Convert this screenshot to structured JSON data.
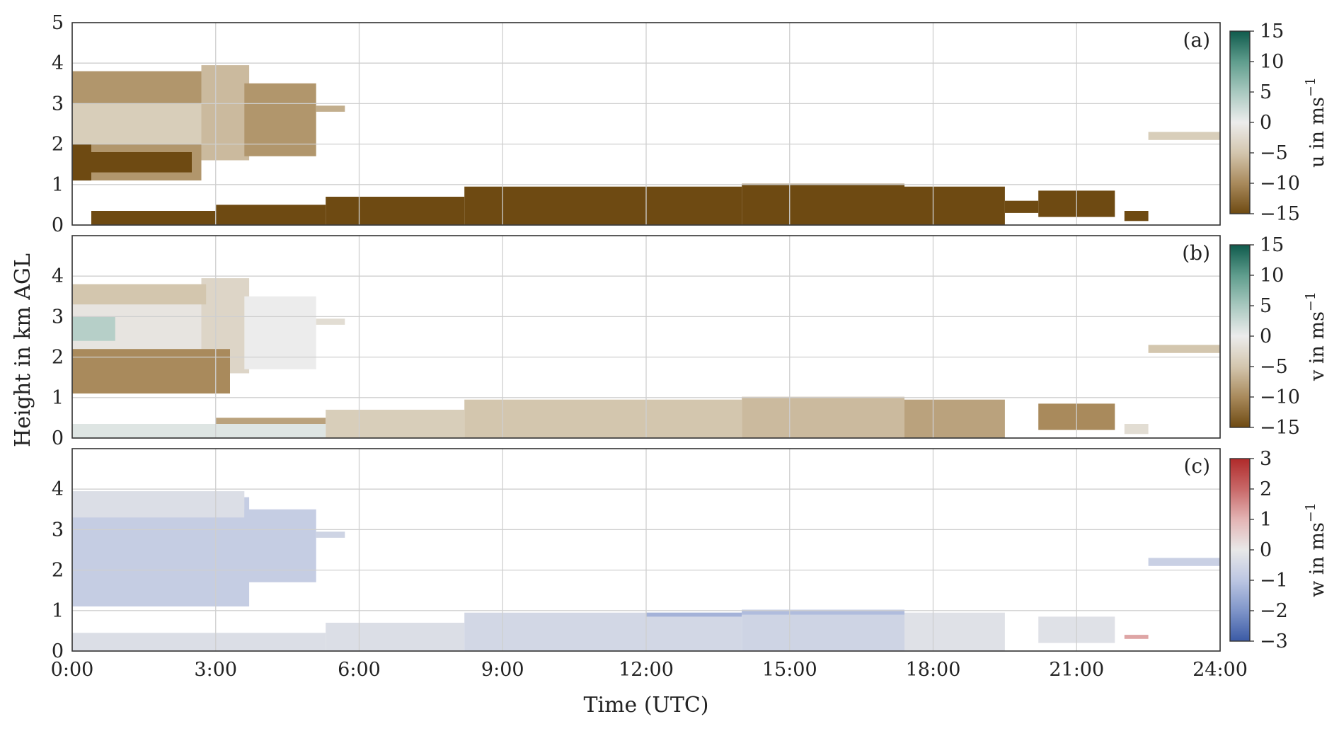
{
  "chart_data": {
    "type": "heatmap",
    "xlabel": "Time (UTC)",
    "ylabel": "Height in km AGL",
    "xlim": [
      0,
      24
    ],
    "x_ticks": [
      "0:00",
      "3:00",
      "6:00",
      "9:00",
      "12:00",
      "15:00",
      "18:00",
      "21:00",
      "24:00"
    ],
    "grid": true,
    "panels": [
      {
        "tag": "(a)",
        "variable": "u",
        "colorbar_label": "u in ms",
        "unit_superscript": "−1",
        "clim": [
          -15,
          15
        ],
        "colorbar_ticks": [
          "15",
          "10",
          "5",
          "0",
          "−5",
          "−10",
          "−15"
        ],
        "colormap": [
          "#6e4a12",
          "#a98a5c",
          "#d3c6ae",
          "#ececec",
          "#a8c8bf",
          "#5f9d8d",
          "#0f5a4c"
        ],
        "ylim": [
          0,
          5
        ],
        "y_ticks": [
          "0",
          "1",
          "2",
          "3",
          "4",
          "5"
        ],
        "regions": [
          {
            "t0": 0.0,
            "t1": 2.7,
            "h0": 1.1,
            "h1": 3.8,
            "value": -9
          },
          {
            "t0": 0.0,
            "t1": 3.6,
            "h0": 2.0,
            "h1": 3.0,
            "value": -4
          },
          {
            "t0": 2.7,
            "t1": 3.7,
            "h0": 1.6,
            "h1": 3.95,
            "value": -6
          },
          {
            "t0": 3.6,
            "t1": 5.1,
            "h0": 1.7,
            "h1": 3.5,
            "value": -9
          },
          {
            "t0": 5.1,
            "t1": 5.7,
            "h0": 2.8,
            "h1": 2.95,
            "value": -7
          },
          {
            "t0": 0.0,
            "t1": 0.4,
            "h0": 1.1,
            "h1": 2.0,
            "value": -15
          },
          {
            "t0": 0.3,
            "t1": 2.5,
            "h0": 1.3,
            "h1": 1.8,
            "value": -15
          },
          {
            "t0": 0.4,
            "t1": 3.5,
            "h0": 0.0,
            "h1": 0.35,
            "value": -15
          },
          {
            "t0": 3.0,
            "t1": 5.3,
            "h0": 0.0,
            "h1": 0.5,
            "value": -15
          },
          {
            "t0": 5.3,
            "t1": 8.2,
            "h0": 0.0,
            "h1": 0.7,
            "value": -15
          },
          {
            "t0": 8.2,
            "t1": 14.0,
            "h0": 0.0,
            "h1": 0.95,
            "value": -15
          },
          {
            "t0": 14.0,
            "t1": 17.4,
            "h0": 0.0,
            "h1": 1.02,
            "value": -15
          },
          {
            "t0": 17.4,
            "t1": 19.5,
            "h0": 0.0,
            "h1": 0.95,
            "value": -15
          },
          {
            "t0": 19.5,
            "t1": 20.2,
            "h0": 0.3,
            "h1": 0.6,
            "value": -15
          },
          {
            "t0": 20.2,
            "t1": 21.8,
            "h0": 0.2,
            "h1": 0.85,
            "value": -15
          },
          {
            "t0": 22.0,
            "t1": 22.5,
            "h0": 0.1,
            "h1": 0.35,
            "value": -15
          },
          {
            "t0": 22.5,
            "t1": 24.0,
            "h0": 2.1,
            "h1": 2.3,
            "value": -4
          }
        ]
      },
      {
        "tag": "(b)",
        "variable": "v",
        "colorbar_label": "v in ms",
        "unit_superscript": "−1",
        "clim": [
          -15,
          15
        ],
        "colorbar_ticks": [
          "15",
          "10",
          "5",
          "0",
          "−5",
          "−10",
          "−15"
        ],
        "colormap": [
          "#6e4a12",
          "#a98a5c",
          "#d3c6ae",
          "#ececec",
          "#a8c8bf",
          "#5f9d8d",
          "#0f5a4c"
        ],
        "ylim": [
          0,
          5
        ],
        "y_ticks": [
          "0",
          "1",
          "2",
          "3",
          "4"
        ],
        "regions": [
          {
            "t0": 0.0,
            "t1": 2.7,
            "h0": 1.1,
            "h1": 3.8,
            "value": -1
          },
          {
            "t0": 2.7,
            "t1": 3.7,
            "h0": 1.6,
            "h1": 3.95,
            "value": -3
          },
          {
            "t0": 3.6,
            "t1": 5.1,
            "h0": 1.7,
            "h1": 3.5,
            "value": 0
          },
          {
            "t0": 5.1,
            "t1": 5.7,
            "h0": 2.8,
            "h1": 2.95,
            "value": -2
          },
          {
            "t0": 0.0,
            "t1": 2.8,
            "h0": 3.3,
            "h1": 3.8,
            "value": -5
          },
          {
            "t0": 0.0,
            "t1": 0.9,
            "h0": 2.4,
            "h1": 3.0,
            "value": 4
          },
          {
            "t0": 0.0,
            "t1": 3.3,
            "h0": 1.1,
            "h1": 2.2,
            "value": -10
          },
          {
            "t0": 0.0,
            "t1": 5.3,
            "h0": 0.0,
            "h1": 0.35,
            "value": 1
          },
          {
            "t0": 3.0,
            "t1": 5.3,
            "h0": 0.35,
            "h1": 0.5,
            "value": -8
          },
          {
            "t0": 5.3,
            "t1": 8.2,
            "h0": 0.0,
            "h1": 0.7,
            "value": -4
          },
          {
            "t0": 8.2,
            "t1": 14.0,
            "h0": 0.0,
            "h1": 0.95,
            "value": -5
          },
          {
            "t0": 14.0,
            "t1": 17.4,
            "h0": 0.0,
            "h1": 1.02,
            "value": -6
          },
          {
            "t0": 17.4,
            "t1": 19.5,
            "h0": 0.0,
            "h1": 0.95,
            "value": -8
          },
          {
            "t0": 20.2,
            "t1": 21.8,
            "h0": 0.2,
            "h1": 0.85,
            "value": -10
          },
          {
            "t0": 22.0,
            "t1": 22.5,
            "h0": 0.1,
            "h1": 0.35,
            "value": -2
          },
          {
            "t0": 22.5,
            "t1": 24.0,
            "h0": 2.1,
            "h1": 2.3,
            "value": -5
          }
        ]
      },
      {
        "tag": "(c)",
        "variable": "w",
        "colorbar_label": "w in ms",
        "unit_superscript": "−1",
        "clim": [
          -3,
          3
        ],
        "colorbar_ticks": [
          "3",
          "2",
          "1",
          "0",
          "−1",
          "−2",
          "−3"
        ],
        "colormap": [
          "#3b5aa5",
          "#7f95c9",
          "#bcc6e2",
          "#e8e8e8",
          "#e3b4b4",
          "#c86868",
          "#b02a2a"
        ],
        "ylim": [
          0,
          5
        ],
        "y_ticks": [
          "0",
          "1",
          "2",
          "3",
          "4"
        ],
        "regions": [
          {
            "t0": 0.0,
            "t1": 3.7,
            "h0": 1.1,
            "h1": 3.8,
            "value": -0.8
          },
          {
            "t0": 0.0,
            "t1": 3.6,
            "h0": 3.3,
            "h1": 3.95,
            "value": -0.3
          },
          {
            "t0": 3.6,
            "t1": 5.1,
            "h0": 1.7,
            "h1": 3.5,
            "value": -0.8
          },
          {
            "t0": 5.1,
            "t1": 5.7,
            "h0": 2.8,
            "h1": 2.95,
            "value": -0.6
          },
          {
            "t0": 0.0,
            "t1": 5.3,
            "h0": 0.0,
            "h1": 0.45,
            "value": -0.3
          },
          {
            "t0": 5.3,
            "t1": 8.2,
            "h0": 0.0,
            "h1": 0.7,
            "value": -0.3
          },
          {
            "t0": 8.2,
            "t1": 14.0,
            "h0": 0.0,
            "h1": 0.95,
            "value": -0.5
          },
          {
            "t0": 12.0,
            "t1": 14.0,
            "h0": 0.85,
            "h1": 0.95,
            "value": -1.4
          },
          {
            "t0": 14.0,
            "t1": 17.4,
            "h0": 0.0,
            "h1": 1.02,
            "value": -0.6
          },
          {
            "t0": 14.0,
            "t1": 17.4,
            "h0": 0.9,
            "h1": 1.02,
            "value": -1.2
          },
          {
            "t0": 17.4,
            "t1": 19.5,
            "h0": 0.0,
            "h1": 0.95,
            "value": -0.2
          },
          {
            "t0": 20.2,
            "t1": 21.8,
            "h0": 0.2,
            "h1": 0.85,
            "value": -0.2
          },
          {
            "t0": 22.0,
            "t1": 22.5,
            "h0": 0.3,
            "h1": 0.4,
            "value": 1.2
          },
          {
            "t0": 22.5,
            "t1": 24.0,
            "h0": 2.1,
            "h1": 2.3,
            "value": -0.7
          }
        ]
      }
    ]
  }
}
